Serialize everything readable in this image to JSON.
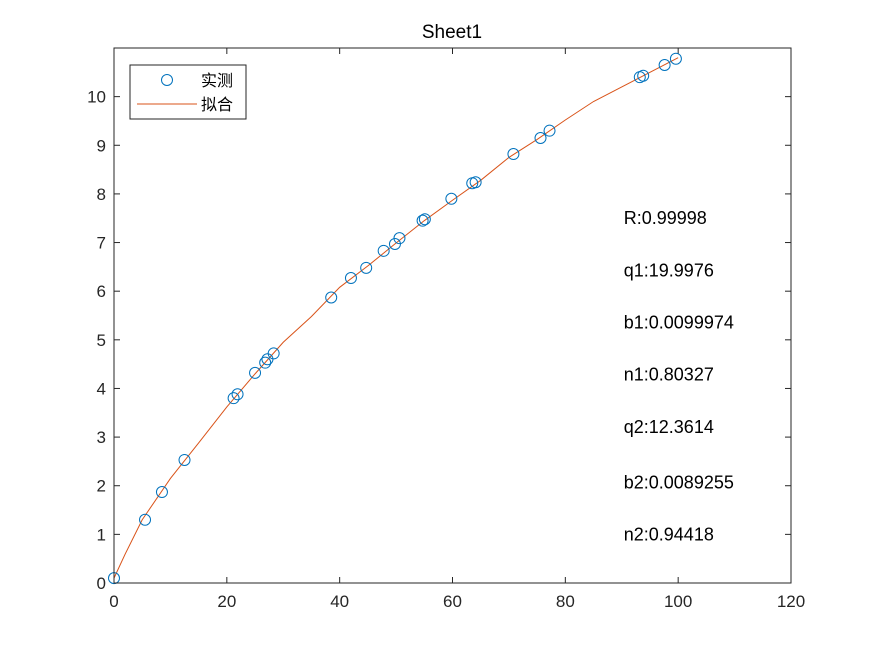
{
  "chart_data": {
    "type": "scatter",
    "title": "Sheet1",
    "xlabel": "",
    "ylabel": "",
    "xlim": [
      0,
      120
    ],
    "ylim": [
      0,
      11
    ],
    "xticks": [
      "0",
      "20",
      "40",
      "60",
      "80",
      "100",
      "120"
    ],
    "yticks": [
      "0",
      "1",
      "2",
      "3",
      "4",
      "5",
      "6",
      "7",
      "8",
      "9",
      "10"
    ],
    "grid": false,
    "legend": {
      "position": "top-left",
      "entries": [
        {
          "label": "实测",
          "marker": "circle",
          "color": "#0072BD"
        },
        {
          "label": "拟合",
          "marker": "line",
          "color": "#D95319"
        }
      ]
    },
    "series": [
      {
        "name": "实测",
        "style": "markers",
        "color": "#0072BD",
        "x": [
          0,
          5.5,
          8.5,
          12.5,
          21.2,
          21.9,
          25,
          26.8,
          27.2,
          28.3,
          38.5,
          42,
          44.7,
          47.8,
          49.8,
          50.6,
          54.7,
          55.1,
          59.8,
          63.5,
          64.1,
          70.8,
          75.6,
          77.2,
          93.2,
          93.8,
          97.6,
          99.6
        ],
        "y": [
          0.1,
          1.3,
          1.87,
          2.53,
          3.8,
          3.88,
          4.32,
          4.53,
          4.6,
          4.72,
          5.87,
          6.27,
          6.48,
          6.83,
          6.97,
          7.09,
          7.45,
          7.48,
          7.9,
          8.22,
          8.24,
          8.82,
          9.15,
          9.3,
          10.4,
          10.43,
          10.65,
          10.78
        ]
      },
      {
        "name": "拟合",
        "style": "line",
        "color": "#D95319",
        "x": [
          0,
          2,
          5,
          10,
          15,
          20,
          25,
          30,
          35,
          40,
          45,
          50,
          55,
          60,
          65,
          70,
          75,
          80,
          85,
          90,
          95,
          100
        ],
        "y": [
          0.1,
          0.6,
          1.3,
          2.15,
          2.88,
          3.62,
          4.3,
          4.95,
          5.48,
          6.08,
          6.52,
          6.99,
          7.45,
          7.87,
          8.28,
          8.75,
          9.12,
          9.52,
          9.9,
          10.2,
          10.5,
          10.8
        ]
      }
    ],
    "annotations": [
      {
        "text": "R:0.99998",
        "x": 90,
        "y": 7.5
      },
      {
        "text": "q1:19.9976",
        "x": 90,
        "y": 6.43
      },
      {
        "text": "b1:0.0099974",
        "x": 90,
        "y": 5.36
      },
      {
        "text": "n1:0.80327",
        "x": 90,
        "y": 4.29
      },
      {
        "text": "q2:12.3614",
        "x": 90,
        "y": 3.21
      },
      {
        "text": "b2:0.0089255",
        "x": 90,
        "y": 2.07
      },
      {
        "text": "n2:0.94418",
        "x": 90,
        "y": 1.0
      }
    ]
  }
}
